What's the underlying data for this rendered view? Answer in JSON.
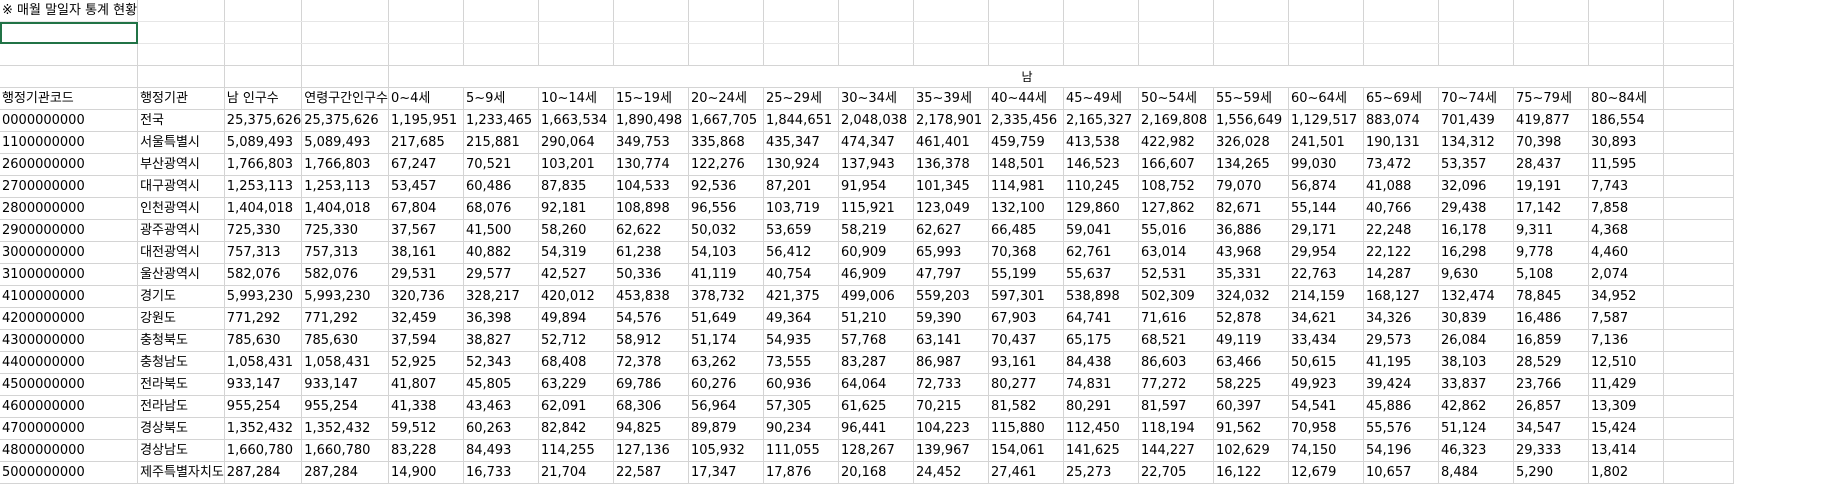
{
  "sheet": {
    "title": "※ 매월 말일자 통계 현황",
    "group_header": "남",
    "columns": [
      "행정기관코드",
      "행정기관",
      "남 인구수",
      "연령구간인구수",
      "0~4세",
      "5~9세",
      "10~14세",
      "15~19세",
      "20~24세",
      "25~29세",
      "30~34세",
      "35~39세",
      "40~44세",
      "45~49세",
      "50~54세",
      "55~59세",
      "60~64세",
      "65~69세",
      "70~74세",
      "75~79세",
      "80~84세"
    ],
    "rows": [
      [
        "0000000000",
        "전국",
        "25,375,626",
        "25,375,626",
        "1,195,951",
        "1,233,465",
        "1,663,534",
        "1,890,498",
        "1,667,705",
        "1,844,651",
        "2,048,038",
        "2,178,901",
        "2,335,456",
        "2,165,327",
        "2,169,808",
        "1,556,649",
        "1,129,517",
        "883,074",
        "701,439",
        "419,877",
        "186,554"
      ],
      [
        "1100000000",
        "서울특별시",
        "5,089,493",
        "5,089,493",
        "217,685",
        "215,881",
        "290,064",
        "349,753",
        "335,868",
        "435,347",
        "474,347",
        "461,401",
        "459,759",
        "413,538",
        "422,982",
        "326,028",
        "241,501",
        "190,131",
        "134,312",
        "70,398",
        "30,893"
      ],
      [
        "2600000000",
        "부산광역시",
        "1,766,803",
        "1,766,803",
        "67,247",
        "70,521",
        "103,201",
        "130,774",
        "122,276",
        "130,924",
        "137,943",
        "136,378",
        "148,501",
        "146,523",
        "166,607",
        "134,265",
        "99,030",
        "73,472",
        "53,357",
        "28,437",
        "11,595"
      ],
      [
        "2700000000",
        "대구광역시",
        "1,253,113",
        "1,253,113",
        "53,457",
        "60,486",
        "87,835",
        "104,533",
        "92,536",
        "87,201",
        "91,954",
        "101,345",
        "114,981",
        "110,245",
        "108,752",
        "79,070",
        "56,874",
        "41,088",
        "32,096",
        "19,191",
        "7,743"
      ],
      [
        "2800000000",
        "인천광역시",
        "1,404,018",
        "1,404,018",
        "67,804",
        "68,076",
        "92,181",
        "108,898",
        "96,556",
        "103,719",
        "115,921",
        "123,049",
        "132,100",
        "129,860",
        "127,862",
        "82,671",
        "55,144",
        "40,766",
        "29,438",
        "17,142",
        "7,858"
      ],
      [
        "2900000000",
        "광주광역시",
        "725,330",
        "725,330",
        "37,567",
        "41,500",
        "58,260",
        "62,622",
        "50,032",
        "53,659",
        "58,219",
        "62,627",
        "66,485",
        "59,041",
        "55,016",
        "36,886",
        "29,171",
        "22,248",
        "16,178",
        "9,311",
        "4,368"
      ],
      [
        "3000000000",
        "대전광역시",
        "757,313",
        "757,313",
        "38,161",
        "40,882",
        "54,319",
        "61,238",
        "54,103",
        "56,412",
        "60,909",
        "65,993",
        "70,368",
        "62,761",
        "63,014",
        "43,968",
        "29,954",
        "22,122",
        "16,298",
        "9,778",
        "4,460"
      ],
      [
        "3100000000",
        "울산광역시",
        "582,076",
        "582,076",
        "29,531",
        "29,577",
        "42,527",
        "50,336",
        "41,119",
        "40,754",
        "46,909",
        "47,797",
        "55,199",
        "55,637",
        "52,531",
        "35,331",
        "22,763",
        "14,287",
        "9,630",
        "5,108",
        "2,074"
      ],
      [
        "4100000000",
        "경기도",
        "5,993,230",
        "5,993,230",
        "320,736",
        "328,217",
        "420,012",
        "453,838",
        "378,732",
        "421,375",
        "499,006",
        "559,203",
        "597,301",
        "538,898",
        "502,309",
        "324,032",
        "214,159",
        "168,127",
        "132,474",
        "78,845",
        "34,952"
      ],
      [
        "4200000000",
        "강원도",
        "771,292",
        "771,292",
        "32,459",
        "36,398",
        "49,894",
        "54,576",
        "51,649",
        "49,364",
        "51,210",
        "59,390",
        "67,903",
        "64,741",
        "71,616",
        "52,878",
        "34,621",
        "34,326",
        "30,839",
        "16,486",
        "7,587"
      ],
      [
        "4300000000",
        "충청북도",
        "785,630",
        "785,630",
        "37,594",
        "38,827",
        "52,712",
        "58,912",
        "51,174",
        "54,935",
        "57,768",
        "63,141",
        "70,437",
        "65,175",
        "68,521",
        "49,119",
        "33,434",
        "29,573",
        "26,084",
        "16,859",
        "7,136"
      ],
      [
        "4400000000",
        "충청남도",
        "1,058,431",
        "1,058,431",
        "52,925",
        "52,343",
        "68,408",
        "72,378",
        "63,262",
        "73,555",
        "83,287",
        "86,987",
        "93,161",
        "84,438",
        "86,603",
        "63,466",
        "50,615",
        "41,195",
        "38,103",
        "28,529",
        "12,510"
      ],
      [
        "4500000000",
        "전라북도",
        "933,147",
        "933,147",
        "41,807",
        "45,805",
        "63,229",
        "69,786",
        "60,276",
        "60,936",
        "64,064",
        "72,733",
        "80,277",
        "74,831",
        "77,272",
        "58,225",
        "49,923",
        "39,424",
        "33,837",
        "23,766",
        "11,429"
      ],
      [
        "4600000000",
        "전라남도",
        "955,254",
        "955,254",
        "41,338",
        "43,463",
        "62,091",
        "68,306",
        "56,964",
        "57,305",
        "61,625",
        "70,215",
        "81,582",
        "80,291",
        "81,597",
        "60,397",
        "54,541",
        "45,886",
        "42,862",
        "26,857",
        "13,309"
      ],
      [
        "4700000000",
        "경상북도",
        "1,352,432",
        "1,352,432",
        "59,512",
        "60,263",
        "82,842",
        "94,825",
        "89,879",
        "90,234",
        "96,441",
        "104,223",
        "115,880",
        "112,450",
        "118,194",
        "91,562",
        "70,958",
        "55,576",
        "51,124",
        "34,547",
        "15,424"
      ],
      [
        "4800000000",
        "경상남도",
        "1,660,780",
        "1,660,780",
        "83,228",
        "84,493",
        "114,255",
        "127,136",
        "105,932",
        "111,055",
        "128,267",
        "139,967",
        "154,061",
        "141,625",
        "144,227",
        "102,629",
        "74,150",
        "54,196",
        "46,323",
        "29,333",
        "13,414"
      ],
      [
        "5000000000",
        "제주특별자치도",
        "287,284",
        "287,284",
        "14,900",
        "16,733",
        "21,704",
        "22,587",
        "17,347",
        "17,876",
        "20,168",
        "24,452",
        "27,461",
        "25,273",
        "22,705",
        "16,122",
        "12,679",
        "10,657",
        "8,484",
        "5,290",
        "1,802"
      ]
    ]
  }
}
